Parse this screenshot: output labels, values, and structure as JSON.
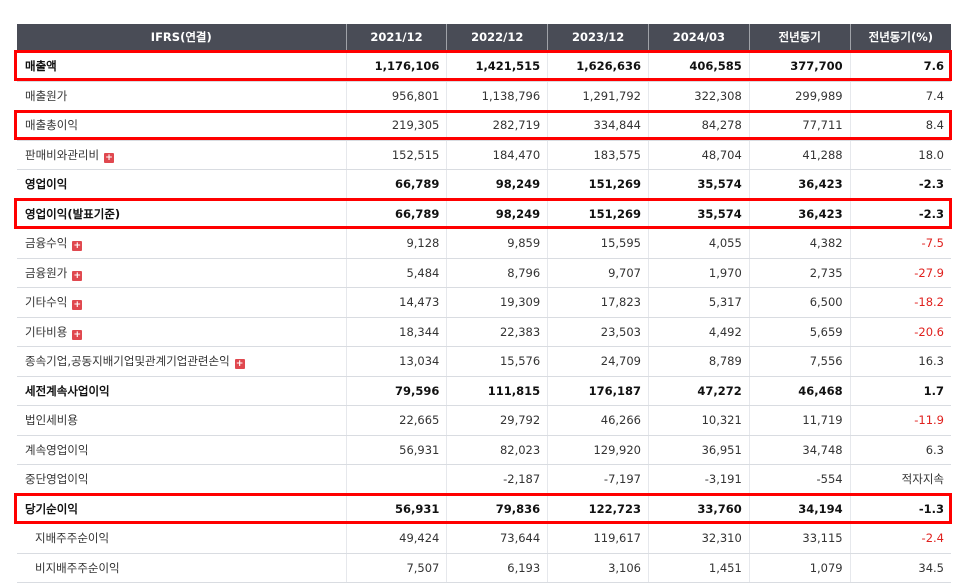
{
  "table": {
    "headers": [
      "IFRS(연결)",
      "2021/12",
      "2022/12",
      "2023/12",
      "2024/03",
      "전년동기",
      "전년동기(%)"
    ],
    "rows": [
      {
        "label": "매출액",
        "values": [
          "1,176,106",
          "1,421,515",
          "1,626,636",
          "406,585",
          "377,700",
          "7.6"
        ],
        "bold": true,
        "highlight": true
      },
      {
        "label": "매출원가",
        "values": [
          "956,801",
          "1,138,796",
          "1,291,792",
          "322,308",
          "299,989",
          "7.4"
        ]
      },
      {
        "label": "매출총이익",
        "values": [
          "219,305",
          "282,719",
          "334,844",
          "84,278",
          "77,711",
          "8.4"
        ],
        "highlight": true
      },
      {
        "label": "판매비와관리비",
        "values": [
          "152,515",
          "184,470",
          "183,575",
          "48,704",
          "41,288",
          "18.0"
        ],
        "expand": true
      },
      {
        "label": "영업이익",
        "values": [
          "66,789",
          "98,249",
          "151,269",
          "35,574",
          "36,423",
          "-2.3"
        ],
        "bold": true
      },
      {
        "label": "영업이익(발표기준)",
        "values": [
          "66,789",
          "98,249",
          "151,269",
          "35,574",
          "36,423",
          "-2.3"
        ],
        "bold": true,
        "highlight": true
      },
      {
        "label": "금융수익",
        "values": [
          "9,128",
          "9,859",
          "15,595",
          "4,055",
          "4,382",
          "-7.5"
        ],
        "expand": true
      },
      {
        "label": "금융원가",
        "values": [
          "5,484",
          "8,796",
          "9,707",
          "1,970",
          "2,735",
          "-27.9"
        ],
        "expand": true
      },
      {
        "label": "기타수익",
        "values": [
          "14,473",
          "19,309",
          "17,823",
          "5,317",
          "6,500",
          "-18.2"
        ],
        "expand": true
      },
      {
        "label": "기타비용",
        "values": [
          "18,344",
          "22,383",
          "23,503",
          "4,492",
          "5,659",
          "-20.6"
        ],
        "expand": true
      },
      {
        "label": "종속기업,공동지배기업및관계기업관련손익",
        "values": [
          "13,034",
          "15,576",
          "24,709",
          "8,789",
          "7,556",
          "16.3"
        ],
        "expand": true
      },
      {
        "label": "세전계속사업이익",
        "values": [
          "79,596",
          "111,815",
          "176,187",
          "47,272",
          "46,468",
          "1.7"
        ],
        "bold": true
      },
      {
        "label": "법인세비용",
        "values": [
          "22,665",
          "29,792",
          "46,266",
          "10,321",
          "11,719",
          "-11.9"
        ]
      },
      {
        "label": "계속영업이익",
        "values": [
          "56,931",
          "82,023",
          "129,920",
          "36,951",
          "34,748",
          "6.3"
        ]
      },
      {
        "label": "중단영업이익",
        "values": [
          "",
          "-2,187",
          "-7,197",
          "-3,191",
          "-554",
          "적자지속"
        ]
      },
      {
        "label": "당기순이익",
        "values": [
          "56,931",
          "79,836",
          "122,723",
          "33,760",
          "34,194",
          "-1.3"
        ],
        "bold": true,
        "highlight": true
      },
      {
        "label": "지배주주순이익",
        "values": [
          "49,424",
          "73,644",
          "119,617",
          "32,310",
          "33,115",
          "-2.4"
        ],
        "sub": true
      },
      {
        "label": "비지배주주순이익",
        "values": [
          "7,507",
          "6,193",
          "3,106",
          "1,451",
          "1,079",
          "34.5"
        ],
        "sub": true
      }
    ],
    "expand_symbol": "+",
    "colors": {
      "header_bg": "#494c56",
      "negative": "#e0201d",
      "highlight": "#ff0000",
      "expand_icon": "#e0484f"
    }
  }
}
